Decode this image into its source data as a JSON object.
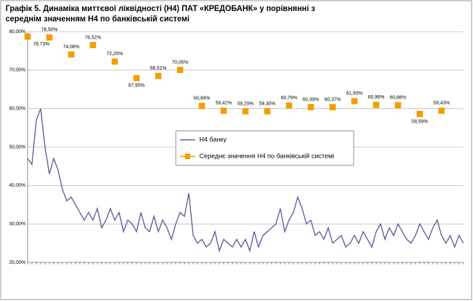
{
  "chart_data": {
    "type": "line",
    "title": "Графік 5. Динаміка миттєвої ліквідності (Н4) ПАТ «КРЕДОБАНК» у порівнянні з середнім значенням Н4 по банківській системі",
    "categories": [
      null,
      null,
      null,
      null,
      null,
      null,
      null,
      null,
      null,
      null,
      null,
      null,
      null,
      null,
      null,
      null,
      null,
      null,
      null,
      null,
      null,
      null,
      null,
      null,
      null,
      null,
      null,
      null,
      null,
      null,
      null,
      null,
      null,
      null,
      null,
      null,
      null,
      null,
      null,
      null,
      null,
      null,
      null,
      null,
      null,
      null,
      null,
      null,
      null,
      null,
      null,
      null,
      null,
      null,
      null,
      null,
      null,
      null,
      null,
      null,
      null,
      null,
      null,
      null,
      null,
      null,
      null,
      null,
      null,
      null,
      null,
      null,
      null,
      null,
      null,
      null,
      null,
      null,
      null,
      null,
      null,
      null,
      null,
      null,
      null,
      null,
      null,
      null,
      null,
      null,
      null,
      null,
      null,
      null,
      null,
      null,
      null,
      null,
      null,
      null,
      null
    ],
    "ylim": [
      20,
      80
    ],
    "yticks": [
      {
        "value": 20,
        "label": "20,00%"
      },
      {
        "value": 30,
        "label": "30,00%"
      },
      {
        "value": 40,
        "label": "40,00%"
      },
      {
        "value": 50,
        "label": "50,00%"
      },
      {
        "value": 60,
        "label": "60,00%"
      },
      {
        "value": 70,
        "label": "70,00%"
      },
      {
        "value": 80,
        "label": "80,00%"
      }
    ],
    "grid": true,
    "series": [
      {
        "name": "Н4 банку",
        "color": "#5b5b9a",
        "style": "line",
        "values": [
          47,
          45.5,
          57,
          60,
          50,
          43,
          47,
          44,
          39,
          36,
          37,
          35,
          33,
          31,
          33,
          31,
          34,
          29,
          31,
          34,
          31,
          33,
          28,
          31,
          30,
          28,
          33,
          29,
          28,
          32,
          28,
          31,
          29,
          26,
          30,
          33,
          32,
          38,
          27,
          25,
          26,
          24,
          25,
          28,
          23,
          26,
          25,
          24,
          26,
          24,
          26,
          23,
          28,
          24,
          27,
          28,
          29,
          30,
          34,
          28,
          31,
          33,
          37,
          34,
          30,
          31,
          27,
          28,
          26,
          29,
          25,
          26,
          27,
          24,
          25,
          27,
          25,
          28,
          26,
          24,
          28,
          30,
          26,
          29,
          27,
          30,
          28,
          26,
          25,
          27,
          30,
          28,
          26,
          29,
          31,
          27,
          25,
          27,
          24,
          27,
          25
        ]
      },
      {
        "name": "Середнє значення Н4 по банківській системі",
        "color": "#f59c00",
        "style": "marker",
        "values": [
          78.73,
          null,
          null,
          null,
          null,
          78.5,
          null,
          null,
          null,
          null,
          74.08,
          null,
          null,
          null,
          null,
          76.52,
          null,
          null,
          null,
          null,
          72.25,
          null,
          null,
          null,
          null,
          67.95,
          null,
          null,
          null,
          null,
          68.51,
          null,
          null,
          null,
          null,
          70.05,
          null,
          null,
          null,
          null,
          60.69,
          null,
          null,
          null,
          null,
          59.42,
          null,
          null,
          null,
          null,
          59.29,
          null,
          null,
          null,
          null,
          59.3,
          null,
          null,
          null,
          null,
          60.79,
          null,
          null,
          null,
          null,
          60.39,
          null,
          null,
          null,
          null,
          60.37,
          null,
          null,
          null,
          null,
          61.93,
          null,
          null,
          null,
          null,
          60.96,
          null,
          null,
          null,
          null,
          60.88,
          null,
          null,
          null,
          null,
          58.59,
          null,
          null,
          null,
          null,
          59.43,
          null,
          null,
          null,
          null,
          null
        ],
        "value_labels": [
          "78,73%",
          null,
          null,
          null,
          null,
          "78,50%",
          null,
          null,
          null,
          null,
          "74,08%",
          null,
          null,
          null,
          null,
          "76,52%",
          null,
          null,
          null,
          null,
          "72,25%",
          null,
          null,
          null,
          null,
          "67,95%",
          null,
          null,
          null,
          null,
          "68,51%",
          null,
          null,
          null,
          null,
          "70,05%",
          null,
          null,
          null,
          null,
          "60,69%",
          null,
          null,
          null,
          null,
          "59,42%",
          null,
          null,
          null,
          null,
          "59,29%",
          null,
          null,
          null,
          null,
          "59,30%",
          null,
          null,
          null,
          null,
          "60,79%",
          null,
          null,
          null,
          null,
          "60,39%",
          null,
          null,
          null,
          null,
          "60,37%",
          null,
          null,
          null,
          null,
          "61,93%",
          null,
          null,
          null,
          null,
          "60,96%",
          null,
          null,
          null,
          null,
          "60,88%",
          null,
          null,
          null,
          null,
          "58,59%",
          null,
          null,
          null,
          null,
          "59,43%",
          null,
          null,
          null,
          null,
          null
        ]
      }
    ]
  }
}
